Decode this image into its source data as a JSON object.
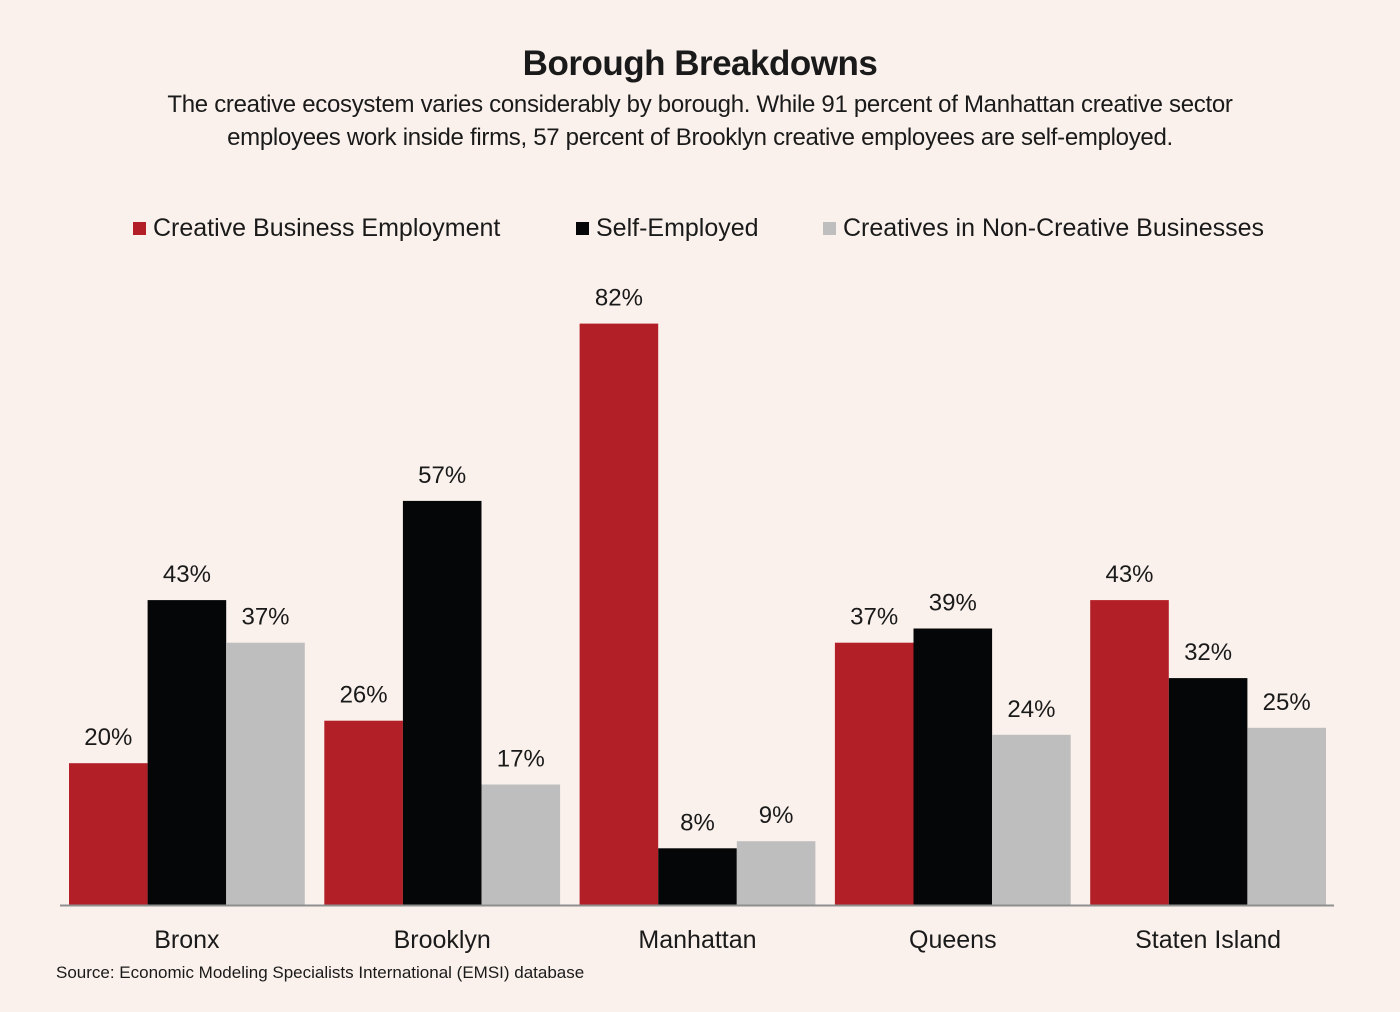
{
  "title": "Borough Breakdowns",
  "subtitle_line1": "The creative ecosystem varies considerably by borough. While 91 percent of Manhattan creative sector",
  "subtitle_line2": "employees work inside firms, 57 percent of Brooklyn creative employees are self-employed.",
  "source": "Source: Economic Modeling Specialists International (EMSI) database",
  "chart_data": {
    "type": "bar",
    "title": "Borough Breakdowns",
    "xlabel": "",
    "ylabel": "",
    "ylim": [
      0,
      90
    ],
    "grid": false,
    "legend_position": "top-center",
    "value_format": "percent",
    "categories": [
      "Bronx",
      "Brooklyn",
      "Manhattan",
      "Queens",
      "Staten Island"
    ],
    "series": [
      {
        "name": "Creative Business Employment",
        "color": "#b31f26",
        "values": [
          20,
          26,
          82,
          37,
          43
        ]
      },
      {
        "name": "Self-Employed",
        "color": "#050607",
        "values": [
          43,
          57,
          8,
          39,
          32
        ]
      },
      {
        "name": "Creatives in Non-Creative Businesses",
        "color": "#bfbebe",
        "values": [
          37,
          17,
          9,
          24,
          25
        ]
      }
    ]
  }
}
